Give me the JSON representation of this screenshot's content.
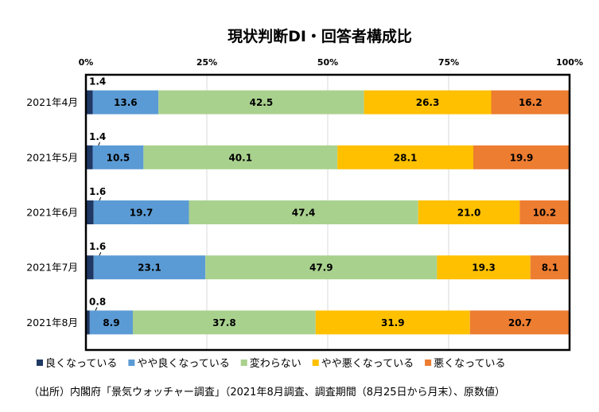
{
  "chart_data": {
    "type": "bar",
    "orientation": "horizontal",
    "stacked": true,
    "percent": true,
    "title": "現状判断DI・回答者構成比",
    "categories": [
      "2021年4月",
      "2021年5月",
      "2021年6月",
      "2021年7月",
      "2021年8月"
    ],
    "x_ticks": [
      "0%",
      "25%",
      "50%",
      "75%",
      "100%"
    ],
    "xlim": [
      0,
      100
    ],
    "grid": "vertical",
    "legend_position": "bottom",
    "series": [
      {
        "name": "良くなっている",
        "color": "#1f3864",
        "values": [
          1.4,
          1.4,
          1.6,
          1.6,
          0.8
        ]
      },
      {
        "name": "やや良くなっている",
        "color": "#5b9bd5",
        "values": [
          13.6,
          10.5,
          19.7,
          23.1,
          8.9
        ]
      },
      {
        "name": "変わらない",
        "color": "#a9d18e",
        "values": [
          42.5,
          40.1,
          47.4,
          47.9,
          37.8
        ]
      },
      {
        "name": "やや悪くなっている",
        "color": "#ffc000",
        "values": [
          26.3,
          28.1,
          21.0,
          19.3,
          31.9
        ]
      },
      {
        "name": "悪くなっている",
        "color": "#ed7d31",
        "values": [
          16.2,
          19.9,
          10.2,
          8.1,
          20.7
        ]
      }
    ],
    "source_note": "（出所）内閣府「景気ウォッチャー調査」（2021年8月調査、調査期間（8月25日から月末）、原数値）"
  }
}
